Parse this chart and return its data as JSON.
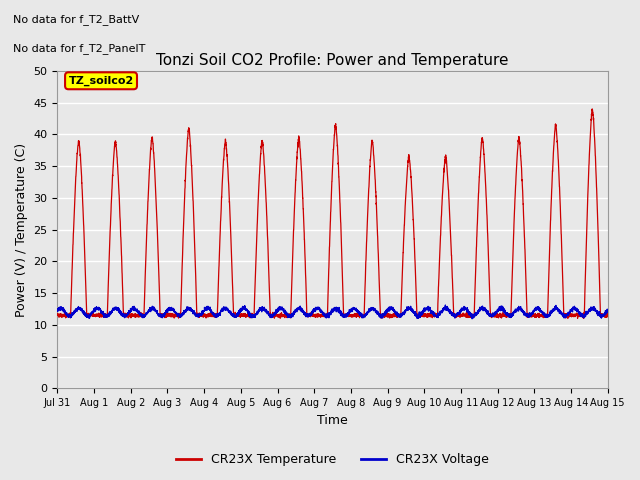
{
  "title": "Tonzi Soil CO2 Profile: Power and Temperature",
  "xlabel": "Time",
  "ylabel": "Power (V) / Temperature (C)",
  "ylim": [
    0,
    50
  ],
  "yticks": [
    0,
    5,
    10,
    15,
    20,
    25,
    30,
    35,
    40,
    45,
    50
  ],
  "xtick_labels": [
    "Jul 31",
    "Aug 1",
    "Aug 2",
    "Aug 3",
    "Aug 4",
    "Aug 5",
    "Aug 6",
    "Aug 7",
    "Aug 8",
    "Aug 9",
    "Aug 10",
    "Aug 11",
    "Aug 12",
    "Aug 13",
    "Aug 14",
    "Aug 15"
  ],
  "temp_color": "#cc0000",
  "voltage_color": "#0000cc",
  "legend_label_temp": "CR23X Temperature",
  "legend_label_voltage": "CR23X Voltage",
  "annotation_text1": "No data for f_T2_BattV",
  "annotation_text2": "No data for f_T2_PanelT",
  "legend_box_label": "TZ_soilco2",
  "legend_box_color": "#ffff00",
  "legend_box_edge": "#cc0000",
  "bg_color": "#e8e8e8",
  "grid_color": "#ffffff",
  "title_fontsize": 11,
  "axis_fontsize": 9,
  "tick_fontsize": 8,
  "annotation_fontsize": 8
}
